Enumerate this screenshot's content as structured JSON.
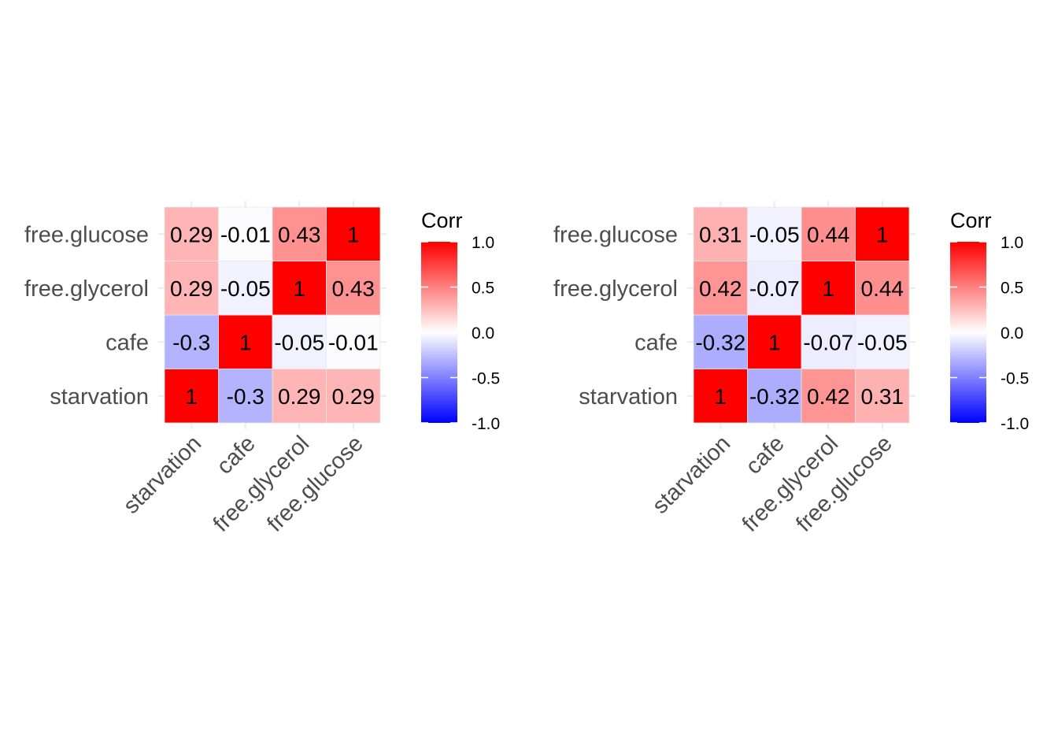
{
  "colors": {
    "low": "#0000FF",
    "mid": "#FFFFFF",
    "high": "#FF0000",
    "grid": "#EBEBEB",
    "axis_text": "#4D4D4D"
  },
  "chart_data": [
    {
      "type": "heatmap",
      "variables": [
        "starvation",
        "cafe",
        "free.glycerol",
        "free.glucose"
      ],
      "x_tick_labels": [
        "starvation",
        "cafe",
        "free.glycerol",
        "free.glucose"
      ],
      "y_tick_labels": [
        "starvation",
        "cafe",
        "free.glycerol",
        "free.glucose"
      ],
      "matrix": [
        [
          1,
          -0.3,
          0.29,
          0.29
        ],
        [
          -0.3,
          1,
          -0.05,
          -0.01
        ],
        [
          0.29,
          -0.05,
          1,
          0.43
        ],
        [
          0.29,
          -0.01,
          0.43,
          1
        ]
      ],
      "legend": {
        "title": "Corr",
        "ticks": [
          "1.0",
          "0.5",
          "0.0",
          "-0.5",
          "-1.0"
        ],
        "range": [
          -1,
          1
        ],
        "placement": "right"
      }
    },
    {
      "type": "heatmap",
      "variables": [
        "starvation",
        "cafe",
        "free.glycerol",
        "free.glucose"
      ],
      "x_tick_labels": [
        "starvation",
        "cafe",
        "free.glycerol",
        "free.glucose"
      ],
      "y_tick_labels": [
        "starvation",
        "cafe",
        "free.glycerol",
        "free.glucose"
      ],
      "matrix": [
        [
          1,
          -0.32,
          0.42,
          0.31
        ],
        [
          -0.32,
          1,
          -0.07,
          -0.05
        ],
        [
          0.42,
          -0.07,
          1,
          0.44
        ],
        [
          0.31,
          -0.05,
          0.44,
          1
        ]
      ],
      "legend": {
        "title": "Corr",
        "ticks": [
          "1.0",
          "0.5",
          "0.0",
          "-0.5",
          "-1.0"
        ],
        "range": [
          -1,
          1
        ],
        "placement": "right"
      }
    }
  ]
}
